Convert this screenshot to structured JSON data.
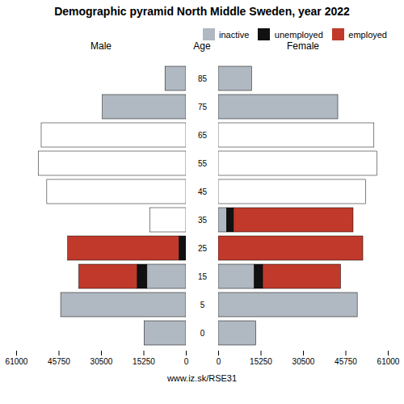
{
  "chart_data": [
    {
      "type": "bar",
      "orientation": "horizontal",
      "stacked": true,
      "title": "Demographic pyramid North Middle Sweden, year 2022",
      "xlabel": "Male",
      "ylabel": "Age",
      "categories": [
        85,
        75,
        65,
        55,
        45,
        35,
        25,
        15,
        5,
        0
      ],
      "series": [
        {
          "name": "inactive",
          "color": "#b0b8c1",
          "colors": [
            "#b0b8c1",
            "#b0b8c1",
            "#b0b8c1",
            "#b0b8c1",
            "#b0b8c1",
            "white",
            "#b0b8c1",
            "#b0b8c1",
            "#b0b8c1",
            "#b0b8c1"
          ],
          "values": [
            7500,
            30000,
            0,
            0,
            0,
            13000,
            0,
            14000,
            45000,
            15000
          ]
        },
        {
          "name": "unemployed",
          "color": "#111111",
          "values": [
            0,
            0,
            0,
            0,
            0,
            0,
            2500,
            3500,
            0,
            0
          ]
        },
        {
          "name": "employed",
          "color": "#c0392b",
          "colors": [
            "#c0392b",
            "#c0392b",
            "white",
            "white",
            "white",
            "#c0392b",
            "#c0392b",
            "#c0392b",
            "#c0392b",
            "#c0392b"
          ],
          "values": [
            0,
            0,
            52000,
            53000,
            50000,
            0,
            40000,
            21000,
            0,
            0
          ]
        }
      ],
      "xlim": [
        61000,
        0
      ],
      "xticks": [
        0,
        15250,
        30500,
        45750,
        61000
      ],
      "grid": false,
      "annotations": [
        "www.iz.sk/RSE31"
      ]
    },
    {
      "type": "bar",
      "orientation": "horizontal",
      "stacked": true,
      "xlabel": "Female",
      "categories": [
        85,
        75,
        65,
        55,
        45,
        35,
        25,
        15,
        5,
        0
      ],
      "series": [
        {
          "name": "inactive",
          "color": "#b0b8c1",
          "values": [
            12000,
            43000,
            0,
            0,
            0,
            3000,
            0,
            13000,
            50000,
            13500
          ]
        },
        {
          "name": "unemployed",
          "color": "#111111",
          "values": [
            0,
            0,
            0,
            0,
            0,
            2500,
            0,
            3000,
            0,
            0
          ]
        },
        {
          "name": "employed",
          "color": "#c0392b",
          "colors": [
            "#c0392b",
            "#c0392b",
            "white",
            "white",
            "white",
            "#c0392b",
            "#c0392b",
            "#c0392b",
            "#c0392b",
            "#c0392b"
          ],
          "values": [
            0,
            0,
            56000,
            57000,
            53000,
            43000,
            52000,
            28000,
            0,
            0
          ]
        }
      ],
      "xlim": [
        0,
        61000
      ],
      "xticks": [
        0,
        15250,
        30500,
        45750,
        61000
      ],
      "grid": false,
      "legend": "upper right",
      "tick_labels": "x"
    }
  ]
}
